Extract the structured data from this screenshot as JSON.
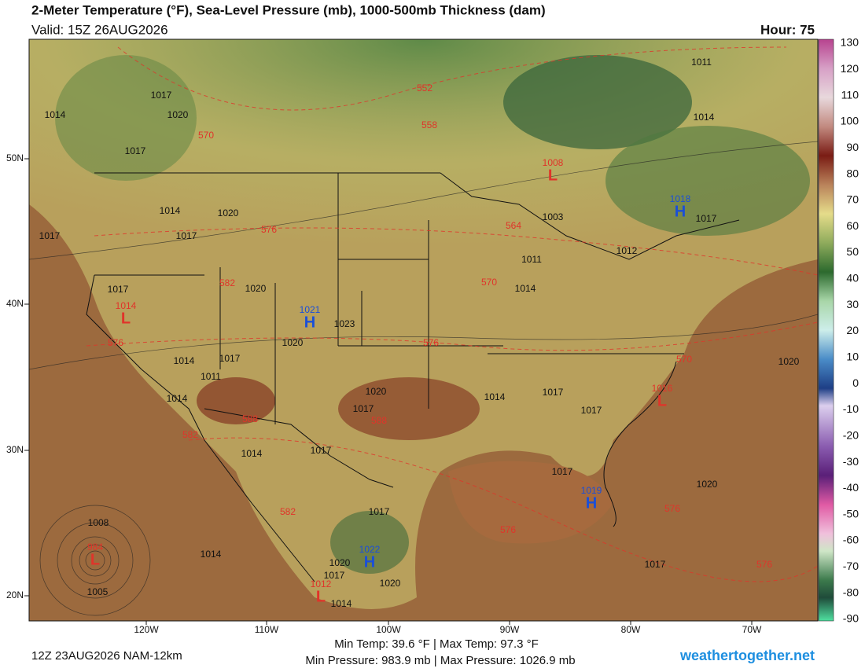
{
  "header": {
    "title": "2-Meter Temperature (°F), Sea-Level Pressure (mb), 1000-500mb Thickness (dam)",
    "valid": "Valid: 15Z 26AUG2026",
    "hour": "Hour: 75"
  },
  "latitude_labels": [
    "50N",
    "40N",
    "30N",
    "20N"
  ],
  "longitude_labels": [
    "120W",
    "110W",
    "100W",
    "90W",
    "80W",
    "70W"
  ],
  "colorbar_ticks": [
    130,
    120,
    110,
    100,
    90,
    80,
    70,
    60,
    50,
    40,
    30,
    20,
    10,
    0,
    -10,
    -20,
    -30,
    -40,
    -50,
    -60,
    -70,
    -80,
    -90
  ],
  "isobar_labels": [
    "1011",
    "1017",
    "1014",
    "1020",
    "1014",
    "1017",
    "1014",
    "1020",
    "1017",
    "1017",
    "1017",
    "1003",
    "1011",
    "1012",
    "1014",
    "1017",
    "1020",
    "1023",
    "1020",
    "1014",
    "1017",
    "1011",
    "1020",
    "1014",
    "1020",
    "1017",
    "1014",
    "1017",
    "1017",
    "1014",
    "1017",
    "1017",
    "1020",
    "1017",
    "1008",
    "1014",
    "1017",
    "1020",
    "1017",
    "1020",
    "1014",
    "1005"
  ],
  "thickness_labels": [
    "552",
    "558",
    "570",
    "576",
    "564",
    "570",
    "582",
    "576",
    "576",
    "570",
    "588",
    "588",
    "582",
    "582",
    "576",
    "576",
    "576"
  ],
  "pressure_centers": [
    {
      "letter": "L",
      "pressure": "1008"
    },
    {
      "letter": "H",
      "pressure": "1018"
    },
    {
      "letter": "L",
      "pressure": "1014"
    },
    {
      "letter": "H",
      "pressure": "1021"
    },
    {
      "letter": "L",
      "pressure": "1016"
    },
    {
      "letter": "H",
      "pressure": "1019"
    },
    {
      "letter": "H",
      "pressure": "1022"
    },
    {
      "letter": "L",
      "pressure": "984"
    },
    {
      "letter": "L",
      "pressure": "1012"
    }
  ],
  "footer": {
    "run": "12Z 23AUG2026 NAM-12km",
    "temps": "Min Temp:  39.6 °F | Max Temp:  97.3 °F",
    "pressures": "Min Pressure: 983.9 mb | Max Pressure: 1026.9 mb",
    "site": "weathertogether.net"
  }
}
